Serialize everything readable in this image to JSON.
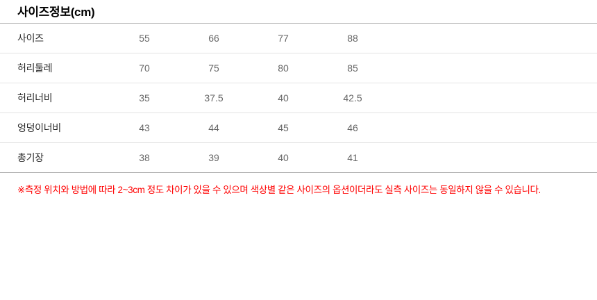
{
  "page": {
    "title": "사이즈정보(cm)",
    "note": "※측정 위치와 방법에 따라 2~3cm 정도 차이가 있을 수 있으며 색상별 같은 사이즈의 옵션이더라도 실측 사이즈는 동일하지 않을 수 있습니다."
  },
  "size_table": {
    "unit": "cm",
    "size_options": [
      "55",
      "66",
      "77",
      "88"
    ],
    "rows": [
      {
        "label": "사이즈",
        "values": [
          "55",
          "66",
          "77",
          "88"
        ]
      },
      {
        "label": "허리둘레",
        "values": [
          "70",
          "75",
          "80",
          "85"
        ]
      },
      {
        "label": "허리너비",
        "values": [
          "35",
          "37.5",
          "40",
          "42.5"
        ]
      },
      {
        "label": "엉덩이너비",
        "values": [
          "43",
          "44",
          "45",
          "46"
        ]
      },
      {
        "label": "총기장",
        "values": [
          "38",
          "39",
          "40",
          "41"
        ]
      }
    ]
  },
  "colors": {
    "note_red": "#ff0000",
    "label_text": "#2b2b2b",
    "value_text": "#666666",
    "outer_border": "#b3b3b3",
    "inner_divider": "#e3e3e3",
    "background": "#ffffff"
  }
}
